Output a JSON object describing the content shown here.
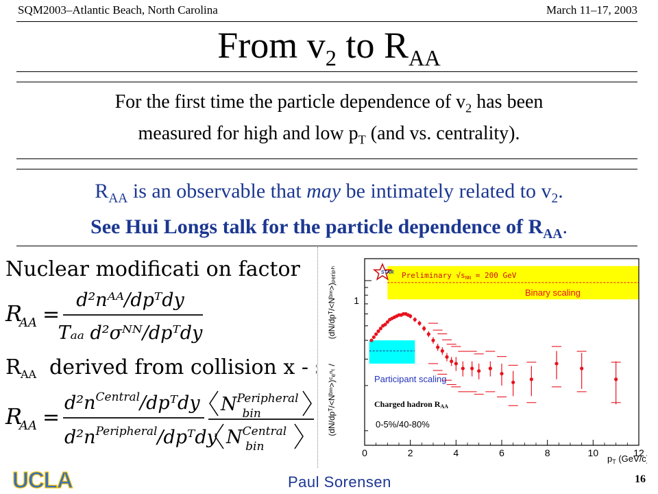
{
  "header": {
    "left": "SQM2003–Atlantic Beach, North Carolina",
    "right": "March 11–17, 2003"
  },
  "title": {
    "pre": "From v",
    "sub1": "2",
    "mid": " to R",
    "sub2": "AA"
  },
  "para1": {
    "a": "For the first time the particle dependence of v",
    "a_sub": "2",
    "b": " has been",
    "c": "measured for high and low p",
    "c_sub": "T",
    "d": " (and vs. centrality)."
  },
  "para2": {
    "l1a": "R",
    "l1a_sub": "AA",
    "l1b": " is an observable that ",
    "l1c": "may",
    "l1d": " be intimately related to v",
    "l1d_sub": "2",
    "l1e": ".",
    "l2a": "See Hui Longs talk for the particle dependence of R",
    "l2a_sub": "AA",
    "l2b": "."
  },
  "formulas": {
    "heading": "Nuclear modificati on factor",
    "derived": "derived from collision  x - section",
    "R": "R",
    "AA": "AA",
    "eq": "=",
    "f1_num": "d²nᴬᴬ/dpᵀdy",
    "f1_den": "Tₐₐ d²σᴺᴺ/dpᵀdy",
    "f2_num": "d²n",
    "f2_num_sup": "Central",
    "f2_num_tail": "/dpᵀdy",
    "f2_den": "d²n",
    "f2_den_sup": "Peripheral",
    "f2_den_tail": "/dpᵀdy",
    "nbin": "N",
    "nbin_sub": "bin",
    "nbin_top_sup": "Peripheral",
    "nbin_bot_sup": "Central"
  },
  "plot": {
    "preliminary": "Preliminary √s",
    "preliminary_sub": "NN",
    "preliminary_tail": " = 200 GeV",
    "binary_scaling": "Binary scaling",
    "participant_scaling": "Participant scaling",
    "series_label": "Charged hadron R",
    "series_label_sub": "AA",
    "centrality": "0-5%/40-80%",
    "ylabel_top": "(dN/dpᵀ/<Nᵇᶦⁿ>)ₚₑᵣᵢₚₕ",
    "ylabel_bottom": "(dN/dpᵀ/<Nᵇᶦⁿ>)ᶜₑⁿₜ /",
    "xlabel": "p",
    "xlabel_sub": "T",
    "xlabel_tail": " (GeV/c)",
    "ytick_1": "1",
    "star_logo": "STAR",
    "colors": {
      "binary_band": "#ffff00",
      "participant_band": "#00ffff",
      "points": "#e8121e",
      "label_blue": "#2233bb",
      "binary_text": "#e8121e"
    }
  },
  "chart_data": {
    "type": "scatter",
    "title": "",
    "xlabel": "pT (GeV/c)",
    "ylabel": "(dN/dpT/<Nbin>)cent / (dN/dpT/<Nbin>)periph",
    "xlim": [
      0,
      12
    ],
    "x_ticks": [
      "0",
      "2",
      "4",
      "6",
      "8",
      "10",
      "12"
    ],
    "y_ticks": [
      "1"
    ],
    "ylim": [
      0.08,
      1.4
    ],
    "log_y": true,
    "bands": [
      {
        "name": "Binary scaling",
        "x_from": 1.0,
        "x_to": 12.0,
        "y_from": 0.75,
        "y_to": 1.25,
        "center": 0.97
      },
      {
        "name": "Participant scaling",
        "x_from": 0.2,
        "x_to": 2.2,
        "y_from": 0.28,
        "y_to": 0.4,
        "center": 0.34
      }
    ],
    "series": [
      {
        "name": "Charged hadron RAA",
        "x": [
          0.3,
          0.4,
          0.5,
          0.6,
          0.7,
          0.8,
          0.9,
          1.0,
          1.1,
          1.2,
          1.3,
          1.4,
          1.5,
          1.6,
          1.7,
          1.8,
          1.9,
          2.0,
          2.2,
          2.4,
          2.6,
          2.8,
          3.0,
          3.2,
          3.4,
          3.6,
          3.8,
          4.0,
          4.3,
          4.7,
          5.0,
          5.5,
          6.0,
          6.5,
          7.3,
          8.4,
          9.5,
          11.0
        ],
        "y": [
          0.4,
          0.42,
          0.44,
          0.46,
          0.48,
          0.5,
          0.51,
          0.53,
          0.55,
          0.56,
          0.57,
          0.58,
          0.59,
          0.59,
          0.6,
          0.6,
          0.59,
          0.58,
          0.55,
          0.52,
          0.48,
          0.44,
          0.4,
          0.36,
          0.34,
          0.31,
          0.29,
          0.28,
          0.26,
          0.26,
          0.25,
          0.26,
          0.24,
          0.21,
          0.22,
          0.28,
          0.26,
          0.22
        ],
        "yerr": [
          0.01,
          0.01,
          0.01,
          0.01,
          0.01,
          0.01,
          0.01,
          0.01,
          0.01,
          0.01,
          0.01,
          0.01,
          0.01,
          0.01,
          0.01,
          0.01,
          0.01,
          0.02,
          0.02,
          0.02,
          0.02,
          0.02,
          0.02,
          0.02,
          0.02,
          0.02,
          0.02,
          0.03,
          0.03,
          0.03,
          0.03,
          0.03,
          0.04,
          0.04,
          0.05,
          0.06,
          0.07,
          0.07
        ]
      }
    ]
  },
  "footer": {
    "logo": "UCLA",
    "name": "Paul Sorensen",
    "page": "16",
    "logo_color": "#3a70b8"
  }
}
